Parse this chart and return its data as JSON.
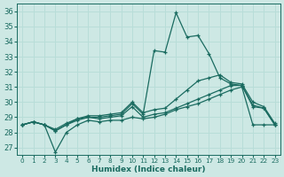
{
  "xlabel": "Humidex (Indice chaleur)",
  "bg_color": "#cde8e4",
  "line_color": "#1a6b60",
  "grid_color": "#b8ddd8",
  "xlim": [
    -0.5,
    23.5
  ],
  "ylim": [
    26.5,
    36.5
  ],
  "xticks": [
    0,
    1,
    2,
    3,
    4,
    5,
    6,
    7,
    8,
    9,
    10,
    11,
    12,
    13,
    14,
    15,
    16,
    17,
    18,
    19,
    20,
    21,
    22,
    23
  ],
  "yticks": [
    27,
    28,
    29,
    30,
    31,
    32,
    33,
    34,
    35,
    36
  ],
  "line_max_x": [
    0,
    1,
    2,
    3,
    4,
    5,
    6,
    7,
    8,
    9,
    10,
    11,
    12,
    13,
    14,
    15,
    16,
    17,
    18,
    19,
    20,
    21,
    22,
    23
  ],
  "line_max_y": [
    28.5,
    28.7,
    28.5,
    28.1,
    28.5,
    28.9,
    29.0,
    29.0,
    29.1,
    29.2,
    29.9,
    29.2,
    33.4,
    33.3,
    35.9,
    34.3,
    34.4,
    33.2,
    31.6,
    31.2,
    31.1,
    29.7,
    29.6,
    28.5
  ],
  "line_hi_x": [
    0,
    1,
    2,
    3,
    4,
    5,
    6,
    7,
    8,
    9,
    10,
    11,
    12,
    13,
    14,
    15,
    16,
    17,
    18,
    19,
    20,
    21,
    22,
    23
  ],
  "line_hi_y": [
    28.5,
    28.7,
    28.5,
    28.2,
    28.6,
    28.9,
    29.1,
    29.1,
    29.2,
    29.3,
    30.0,
    29.3,
    29.5,
    29.6,
    30.2,
    30.8,
    31.4,
    31.6,
    31.8,
    31.3,
    31.2,
    30.0,
    29.7,
    28.6
  ],
  "line_lo_x": [
    0,
    1,
    2,
    3,
    4,
    5,
    6,
    7,
    8,
    9,
    10,
    11,
    12,
    13,
    14,
    15,
    16,
    17,
    18,
    19,
    20,
    21,
    22,
    23
  ],
  "line_lo_y": [
    28.5,
    28.7,
    28.5,
    28.1,
    28.5,
    28.8,
    29.0,
    28.9,
    29.0,
    29.1,
    29.7,
    29.0,
    29.2,
    29.3,
    29.6,
    29.9,
    30.2,
    30.5,
    30.8,
    31.1,
    31.1,
    29.8,
    29.6,
    28.5
  ],
  "line_min_x": [
    0,
    1,
    2,
    3,
    4,
    5,
    6,
    7,
    8,
    9,
    10,
    11,
    12,
    13,
    14,
    15,
    16,
    17,
    18,
    19,
    20,
    21,
    22,
    23
  ],
  "line_min_y": [
    28.5,
    28.7,
    28.5,
    26.7,
    28.0,
    28.5,
    28.8,
    28.7,
    28.8,
    28.8,
    29.0,
    28.9,
    29.0,
    29.2,
    29.5,
    29.7,
    29.9,
    30.2,
    30.5,
    30.8,
    31.0,
    28.5,
    28.5,
    28.5
  ],
  "mark_max_x": [
    0,
    1,
    2,
    3,
    4,
    5,
    6,
    7,
    8,
    9,
    10,
    11,
    12,
    13,
    14,
    15,
    16,
    17,
    18,
    19,
    20,
    21,
    22,
    23
  ],
  "mark_max_y": [
    28.5,
    28.7,
    28.5,
    28.1,
    28.5,
    28.9,
    29.0,
    29.0,
    29.1,
    29.2,
    29.9,
    29.2,
    33.4,
    33.3,
    35.9,
    34.3,
    34.4,
    33.2,
    31.6,
    31.2,
    31.1,
    29.7,
    29.6,
    28.5
  ],
  "mark_hi_x": [
    0,
    1,
    2,
    3,
    4,
    5,
    6,
    7,
    8,
    9,
    10,
    11,
    12,
    13,
    14,
    15,
    16,
    17,
    18,
    19,
    20,
    21,
    22,
    23
  ],
  "mark_hi_y": [
    28.5,
    28.7,
    28.5,
    28.2,
    28.6,
    28.9,
    29.1,
    29.1,
    29.2,
    29.3,
    30.0,
    29.3,
    29.5,
    29.6,
    30.2,
    30.8,
    31.4,
    31.6,
    31.8,
    31.3,
    31.2,
    30.0,
    29.7,
    28.6
  ],
  "mark_lo_x": [
    0,
    1,
    2,
    3,
    4,
    5,
    6,
    7,
    8,
    9,
    10,
    11,
    12,
    13,
    14,
    15,
    16,
    17,
    18,
    19,
    20,
    21,
    22,
    23
  ],
  "mark_lo_y": [
    28.5,
    28.7,
    28.5,
    28.1,
    28.5,
    28.8,
    29.0,
    28.9,
    29.0,
    29.1,
    29.7,
    29.0,
    29.2,
    29.3,
    29.6,
    29.9,
    30.2,
    30.5,
    30.8,
    31.1,
    31.1,
    29.8,
    29.6,
    28.5
  ],
  "mark_min_x": [
    0,
    1,
    2,
    3,
    4,
    5,
    6,
    7,
    8,
    9,
    10,
    11,
    12,
    13,
    14,
    15,
    16,
    17,
    18,
    19,
    20,
    21,
    22,
    23
  ],
  "mark_min_y": [
    28.5,
    28.7,
    28.5,
    26.7,
    28.0,
    28.5,
    28.8,
    28.7,
    28.8,
    28.8,
    29.0,
    28.9,
    29.0,
    29.2,
    29.5,
    29.7,
    29.9,
    30.2,
    30.5,
    30.8,
    31.0,
    28.5,
    28.5,
    28.5
  ]
}
